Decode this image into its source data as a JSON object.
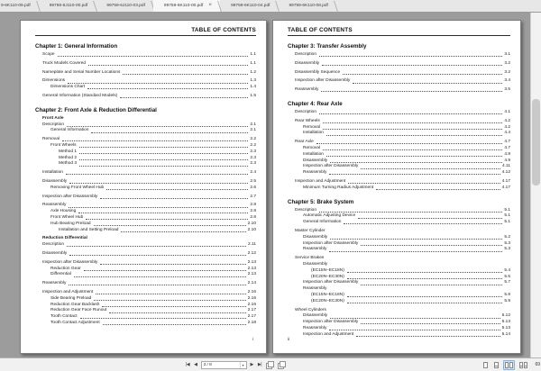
{
  "colors": {
    "doc_bg": "#9c9c9c",
    "page_bg": "#ffffff",
    "tabbar_bg": "#e7e7e7",
    "statusbar_bg": "#f1f1f1",
    "selected_icon_bg": "#cfe4f8",
    "selected_icon_border": "#8ab0d8"
  },
  "tab_bar": {
    "close_icon": "×",
    "tabs": [
      {
        "label": "9-6K110-09.pdf",
        "active": false
      },
      {
        "label": "99759-6J110-00.pdf",
        "active": false
      },
      {
        "label": "99759-6J110-03.pdf",
        "active": false
      },
      {
        "label": "99759-6K110-00.pdf",
        "active": true
      },
      {
        "label": "99759-6K110-04.pdf",
        "active": false
      },
      {
        "label": "99759-6K110-08.pdf",
        "active": false
      }
    ]
  },
  "status_bar": {
    "page_indicator": "3 / 8",
    "zoom_level": "69"
  },
  "document": {
    "left_page": {
      "header": "TABLE OF CONTENTS",
      "header_align": "right",
      "footer": "i",
      "footer_align": "right",
      "chapters": [
        {
          "title": "Chapter 1: General Information",
          "entries": [
            {
              "label": "Scope",
              "page": "1.1",
              "indent": 0,
              "gap": true
            },
            {
              "label": "Truck Models Covered",
              "page": "1.1",
              "indent": 0,
              "gap": true
            },
            {
              "label": "Nameplate and Serial Number Locations",
              "page": "1.2",
              "indent": 0,
              "gap": true
            },
            {
              "label": "Dimensions",
              "page": "1.3",
              "indent": 0,
              "gap": true
            },
            {
              "label": "Dimensions Chart",
              "page": "1.4",
              "indent": 1
            },
            {
              "label": "General Information (Standard Models)",
              "page": "1.5",
              "indent": 0,
              "gap": true
            }
          ]
        },
        {
          "title": "Chapter 2: Front Axle & Reduction Differential",
          "entries": [
            {
              "label": "Front Axle",
              "indent": 0,
              "bold": true,
              "gap": true
            },
            {
              "label": "Description",
              "page": "2.1",
              "indent": 0
            },
            {
              "label": "General Information",
              "page": "2.1",
              "indent": 1
            },
            {
              "label": "Removal",
              "page": "2.2",
              "indent": 0,
              "gap": true
            },
            {
              "label": "Front Wheels",
              "page": "2.2",
              "indent": 1
            },
            {
              "label": "Method 1",
              "page": "2.3",
              "indent": 2
            },
            {
              "label": "Method 2",
              "page": "2.3",
              "indent": 2
            },
            {
              "label": "Method 3",
              "page": "2.3",
              "indent": 2
            },
            {
              "label": "Installation",
              "page": "2.4",
              "indent": 0,
              "gap": true
            },
            {
              "label": "Disassembly",
              "page": "2.5",
              "indent": 0,
              "gap": true
            },
            {
              "label": "Removing Front Wheel Hub",
              "page": "2.6",
              "indent": 1
            },
            {
              "label": "Inspection after Disassembly",
              "page": "2.7",
              "indent": 0,
              "gap": true
            },
            {
              "label": "Reassembly",
              "page": "2.8",
              "indent": 0,
              "gap": true
            },
            {
              "label": "Axle Housing",
              "page": "2.8",
              "indent": 1
            },
            {
              "label": "Front Wheel Hub",
              "page": "2.8",
              "indent": 1
            },
            {
              "label": "Hub Bearing Preload",
              "page": "2.10",
              "indent": 1
            },
            {
              "label": "Installation and Setting Preload",
              "page": "2.10",
              "indent": 2
            },
            {
              "label": "Reduction Differential",
              "indent": 0,
              "bold": true,
              "gap": true
            },
            {
              "label": "Description",
              "page": "2.11",
              "indent": 0
            },
            {
              "label": "Disassembly",
              "page": "2.12",
              "indent": 0,
              "gap": true
            },
            {
              "label": "Inspection after Disassembly",
              "page": "2.13",
              "indent": 0,
              "gap": true
            },
            {
              "label": "Reduction Gear",
              "page": "2.13",
              "indent": 1
            },
            {
              "label": "Differential",
              "page": "2.13",
              "indent": 1
            },
            {
              "label": "Reassembly",
              "page": "2.14",
              "indent": 0,
              "gap": true
            },
            {
              "label": "Inspection and Adjustment",
              "page": "2.16",
              "indent": 0,
              "gap": true
            },
            {
              "label": "Side Bearing Preload",
              "page": "2.16",
              "indent": 1
            },
            {
              "label": "Reduction Gear Backlash",
              "page": "2.16",
              "indent": 1
            },
            {
              "label": "Reduction Gear Face Runout",
              "page": "2.17",
              "indent": 1
            },
            {
              "label": "Tooth Contact",
              "page": "2.17",
              "indent": 1
            },
            {
              "label": "Tooth Contact Adjustment",
              "page": "2.18",
              "indent": 1
            }
          ]
        }
      ]
    },
    "right_page": {
      "header": "TABLE OF CONTENTS",
      "header_align": "left",
      "footer": "ii",
      "footer_align": "left",
      "chapters": [
        {
          "title": "Chapter 3: Transfer Assembly",
          "entries": [
            {
              "label": "Description",
              "page": "3.1",
              "indent": 0,
              "gap": true
            },
            {
              "label": "Disassembly",
              "page": "3.2",
              "indent": 0,
              "gap": true
            },
            {
              "label": "Disassembly Sequence",
              "page": "3.2",
              "indent": 0,
              "gap": true
            },
            {
              "label": "Inspection after Disassembly",
              "page": "3.4",
              "indent": 0,
              "gap": true
            },
            {
              "label": "Reassembly",
              "page": "3.5",
              "indent": 0,
              "gap": true
            }
          ]
        },
        {
          "title": "Chapter 4: Rear Axle",
          "entries": [
            {
              "label": "Description",
              "page": "4.1",
              "indent": 0,
              "gap": true
            },
            {
              "label": "Rear Wheels",
              "page": "4.2",
              "indent": 0,
              "gap": true
            },
            {
              "label": "Removal",
              "page": "4.2",
              "indent": 1
            },
            {
              "label": "Installation",
              "page": "4.4",
              "indent": 1
            },
            {
              "label": "Rear Axle",
              "page": "4.7",
              "indent": 0,
              "gap": true
            },
            {
              "label": "Removal",
              "page": "4.7",
              "indent": 1
            },
            {
              "label": "Installation",
              "page": "4.8",
              "indent": 1
            },
            {
              "label": "Disassembly",
              "page": "4.9",
              "indent": 1
            },
            {
              "label": "Inspection after Disassembly",
              "page": "4.11",
              "indent": 1
            },
            {
              "label": "Reassembly",
              "page": "4.12",
              "indent": 1
            },
            {
              "label": "Inspection and Adjustment",
              "page": "4.17",
              "indent": 0,
              "gap": true
            },
            {
              "label": "Minimum Turning Radius Adjustment",
              "page": "4.17",
              "indent": 1
            }
          ]
        },
        {
          "title": "Chapter 5: Brake System",
          "entries": [
            {
              "label": "Description",
              "page": "5.1",
              "indent": 0,
              "gap": true
            },
            {
              "label": "Automatic Adjusting Device",
              "page": "5.1",
              "indent": 1
            },
            {
              "label": "General Information",
              "page": "5.1",
              "indent": 1
            },
            {
              "label": "Master Cylinder",
              "indent": 0,
              "gap": true
            },
            {
              "label": "Disassembly",
              "page": "5.2",
              "indent": 1
            },
            {
              "label": "Inspection after Disassembly",
              "page": "5.3",
              "indent": 1
            },
            {
              "label": "Reassembly",
              "page": "5.3",
              "indent": 1
            },
            {
              "label": "Service Brakes",
              "indent": 0,
              "gap": true
            },
            {
              "label": "Disassembly",
              "indent": 1
            },
            {
              "label": "(EC15N–EC18N)",
              "page": "5.4",
              "indent": 2
            },
            {
              "label": "(EC20N–EC30N)",
              "page": "5.5",
              "indent": 2
            },
            {
              "label": "Inspection after Disassembly",
              "page": "5.7",
              "indent": 1
            },
            {
              "label": "Reassembly",
              "indent": 1
            },
            {
              "label": "(EC15N–EC18N)",
              "page": "5.8",
              "indent": 2
            },
            {
              "label": "(EC20N–EC30N)",
              "page": "5.9",
              "indent": 2
            },
            {
              "label": "Wheel Cylinders",
              "indent": 0,
              "gap": true
            },
            {
              "label": "Disassembly",
              "page": "5.12",
              "indent": 1
            },
            {
              "label": "Inspection after Disassembly",
              "page": "5.13",
              "indent": 1
            },
            {
              "label": "Reassembly",
              "page": "5.13",
              "indent": 1
            },
            {
              "label": "Inspection and Adjustment",
              "page": "5.14",
              "indent": 1
            }
          ]
        }
      ]
    }
  }
}
